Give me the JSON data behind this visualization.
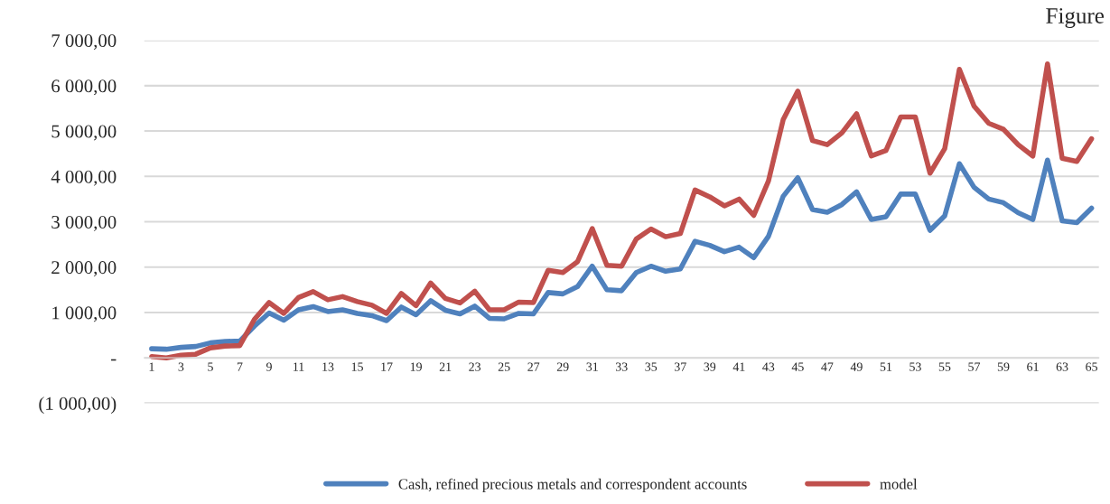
{
  "chart_data": {
    "type": "line",
    "categories": [
      "1",
      null,
      "3",
      null,
      "5",
      null,
      "7",
      null,
      "9",
      null,
      "11",
      null,
      "13",
      null,
      "15",
      null,
      "17",
      null,
      "19",
      null,
      "21",
      null,
      "23",
      null,
      "25",
      null,
      "27",
      null,
      "29",
      null,
      "31",
      null,
      "33",
      null,
      "35",
      null,
      "37",
      null,
      "39",
      null,
      "41",
      null,
      "43",
      null,
      "45",
      null,
      "47",
      null,
      "49",
      null,
      "51",
      null,
      "53",
      null,
      "55",
      null,
      "57",
      null,
      "59",
      null,
      "61",
      null,
      "63",
      null,
      "65"
    ],
    "series": [
      {
        "name": "Cash, refined precious metals and correspondent accounts",
        "color": "#4f81bd",
        "values": [
          200,
          190,
          230,
          250,
          330,
          360,
          370,
          700,
          990,
          830,
          1060,
          1130,
          1020,
          1060,
          980,
          930,
          820,
          1120,
          950,
          1260,
          1050,
          970,
          1140,
          870,
          860,
          980,
          970,
          1440,
          1410,
          1570,
          2020,
          1500,
          1480,
          1880,
          2020,
          1910,
          1960,
          2570,
          2480,
          2340,
          2440,
          2210,
          2680,
          3560,
          3970,
          3270,
          3210,
          3380,
          3660,
          3050,
          3110,
          3610,
          3610,
          2810,
          3130,
          4280,
          3760,
          3500,
          3420,
          3200,
          3050,
          4360,
          3020,
          2980,
          3300
        ]
      },
      {
        "name": "model",
        "color": "#c0504d",
        "values": [
          30,
          0,
          60,
          80,
          220,
          260,
          270,
          850,
          1220,
          980,
          1330,
          1460,
          1280,
          1350,
          1240,
          1160,
          980,
          1420,
          1150,
          1650,
          1310,
          1210,
          1470,
          1060,
          1060,
          1230,
          1220,
          1930,
          1880,
          2120,
          2850,
          2040,
          2020,
          2620,
          2840,
          2670,
          2740,
          3700,
          3550,
          3350,
          3500,
          3140,
          3900,
          5250,
          5880,
          4790,
          4700,
          4960,
          5380,
          4450,
          4570,
          5310,
          5310,
          4070,
          4610,
          6360,
          5550,
          5170,
          5040,
          4700,
          4450,
          6480,
          4400,
          4330,
          4830
        ]
      }
    ],
    "ylim": [
      -1000,
      7000
    ],
    "yticks": [
      {
        "value": -1000,
        "label": "(1 000,00)"
      },
      {
        "value": 0,
        "label": "-"
      },
      {
        "value": 1000,
        "label": "1 000,00"
      },
      {
        "value": 2000,
        "label": "2 000,00"
      },
      {
        "value": 3000,
        "label": "3 000,00"
      },
      {
        "value": 4000,
        "label": "4 000,00"
      },
      {
        "value": 5000,
        "label": "5 000,00"
      },
      {
        "value": 6000,
        "label": "6 000,00"
      },
      {
        "value": 7000,
        "label": "7 000,00"
      }
    ],
    "grid": "y",
    "legend": "bottom",
    "line_style": "solid",
    "marker": "none",
    "annotations": [
      "Figure"
    ]
  }
}
